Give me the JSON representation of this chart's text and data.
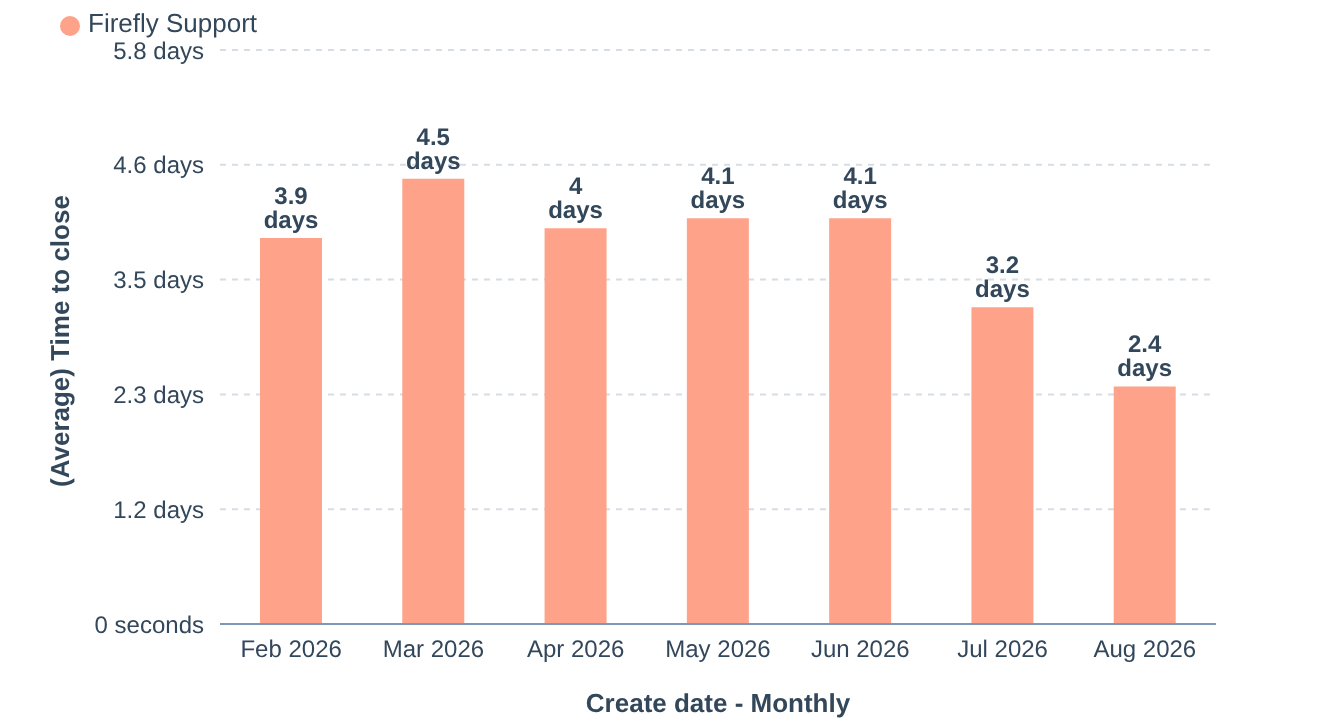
{
  "chart_data": {
    "type": "bar",
    "xlabel": "Create date - Monthly",
    "ylabel": "(Average) Time to close",
    "categories": [
      "Feb 2026",
      "Mar 2026",
      "Apr 2026",
      "May 2026",
      "Jun 2026",
      "Jul 2026",
      "Aug 2026"
    ],
    "series": [
      {
        "name": "Firefly Support",
        "color": "#fea38a",
        "values": [
          3.9,
          4.5,
          4,
          4.1,
          4.1,
          3.2,
          2.4
        ],
        "value_labels": [
          "3.9 days",
          "4.5 days",
          "4 days",
          "4.1 days",
          "4.1 days",
          "3.2 days",
          "2.4 days"
        ]
      }
    ],
    "ylim": [
      0,
      5.8
    ],
    "yticks": [
      {
        "value": 0,
        "label": "0 seconds"
      },
      {
        "value": 1.16,
        "label": "1.2 days"
      },
      {
        "value": 2.32,
        "label": "2.3 days"
      },
      {
        "value": 3.48,
        "label": "3.5 days"
      },
      {
        "value": 4.64,
        "label": "4.6 days"
      },
      {
        "value": 5.8,
        "label": "5.8 days"
      }
    ],
    "grid": "y",
    "legend": "top left"
  }
}
